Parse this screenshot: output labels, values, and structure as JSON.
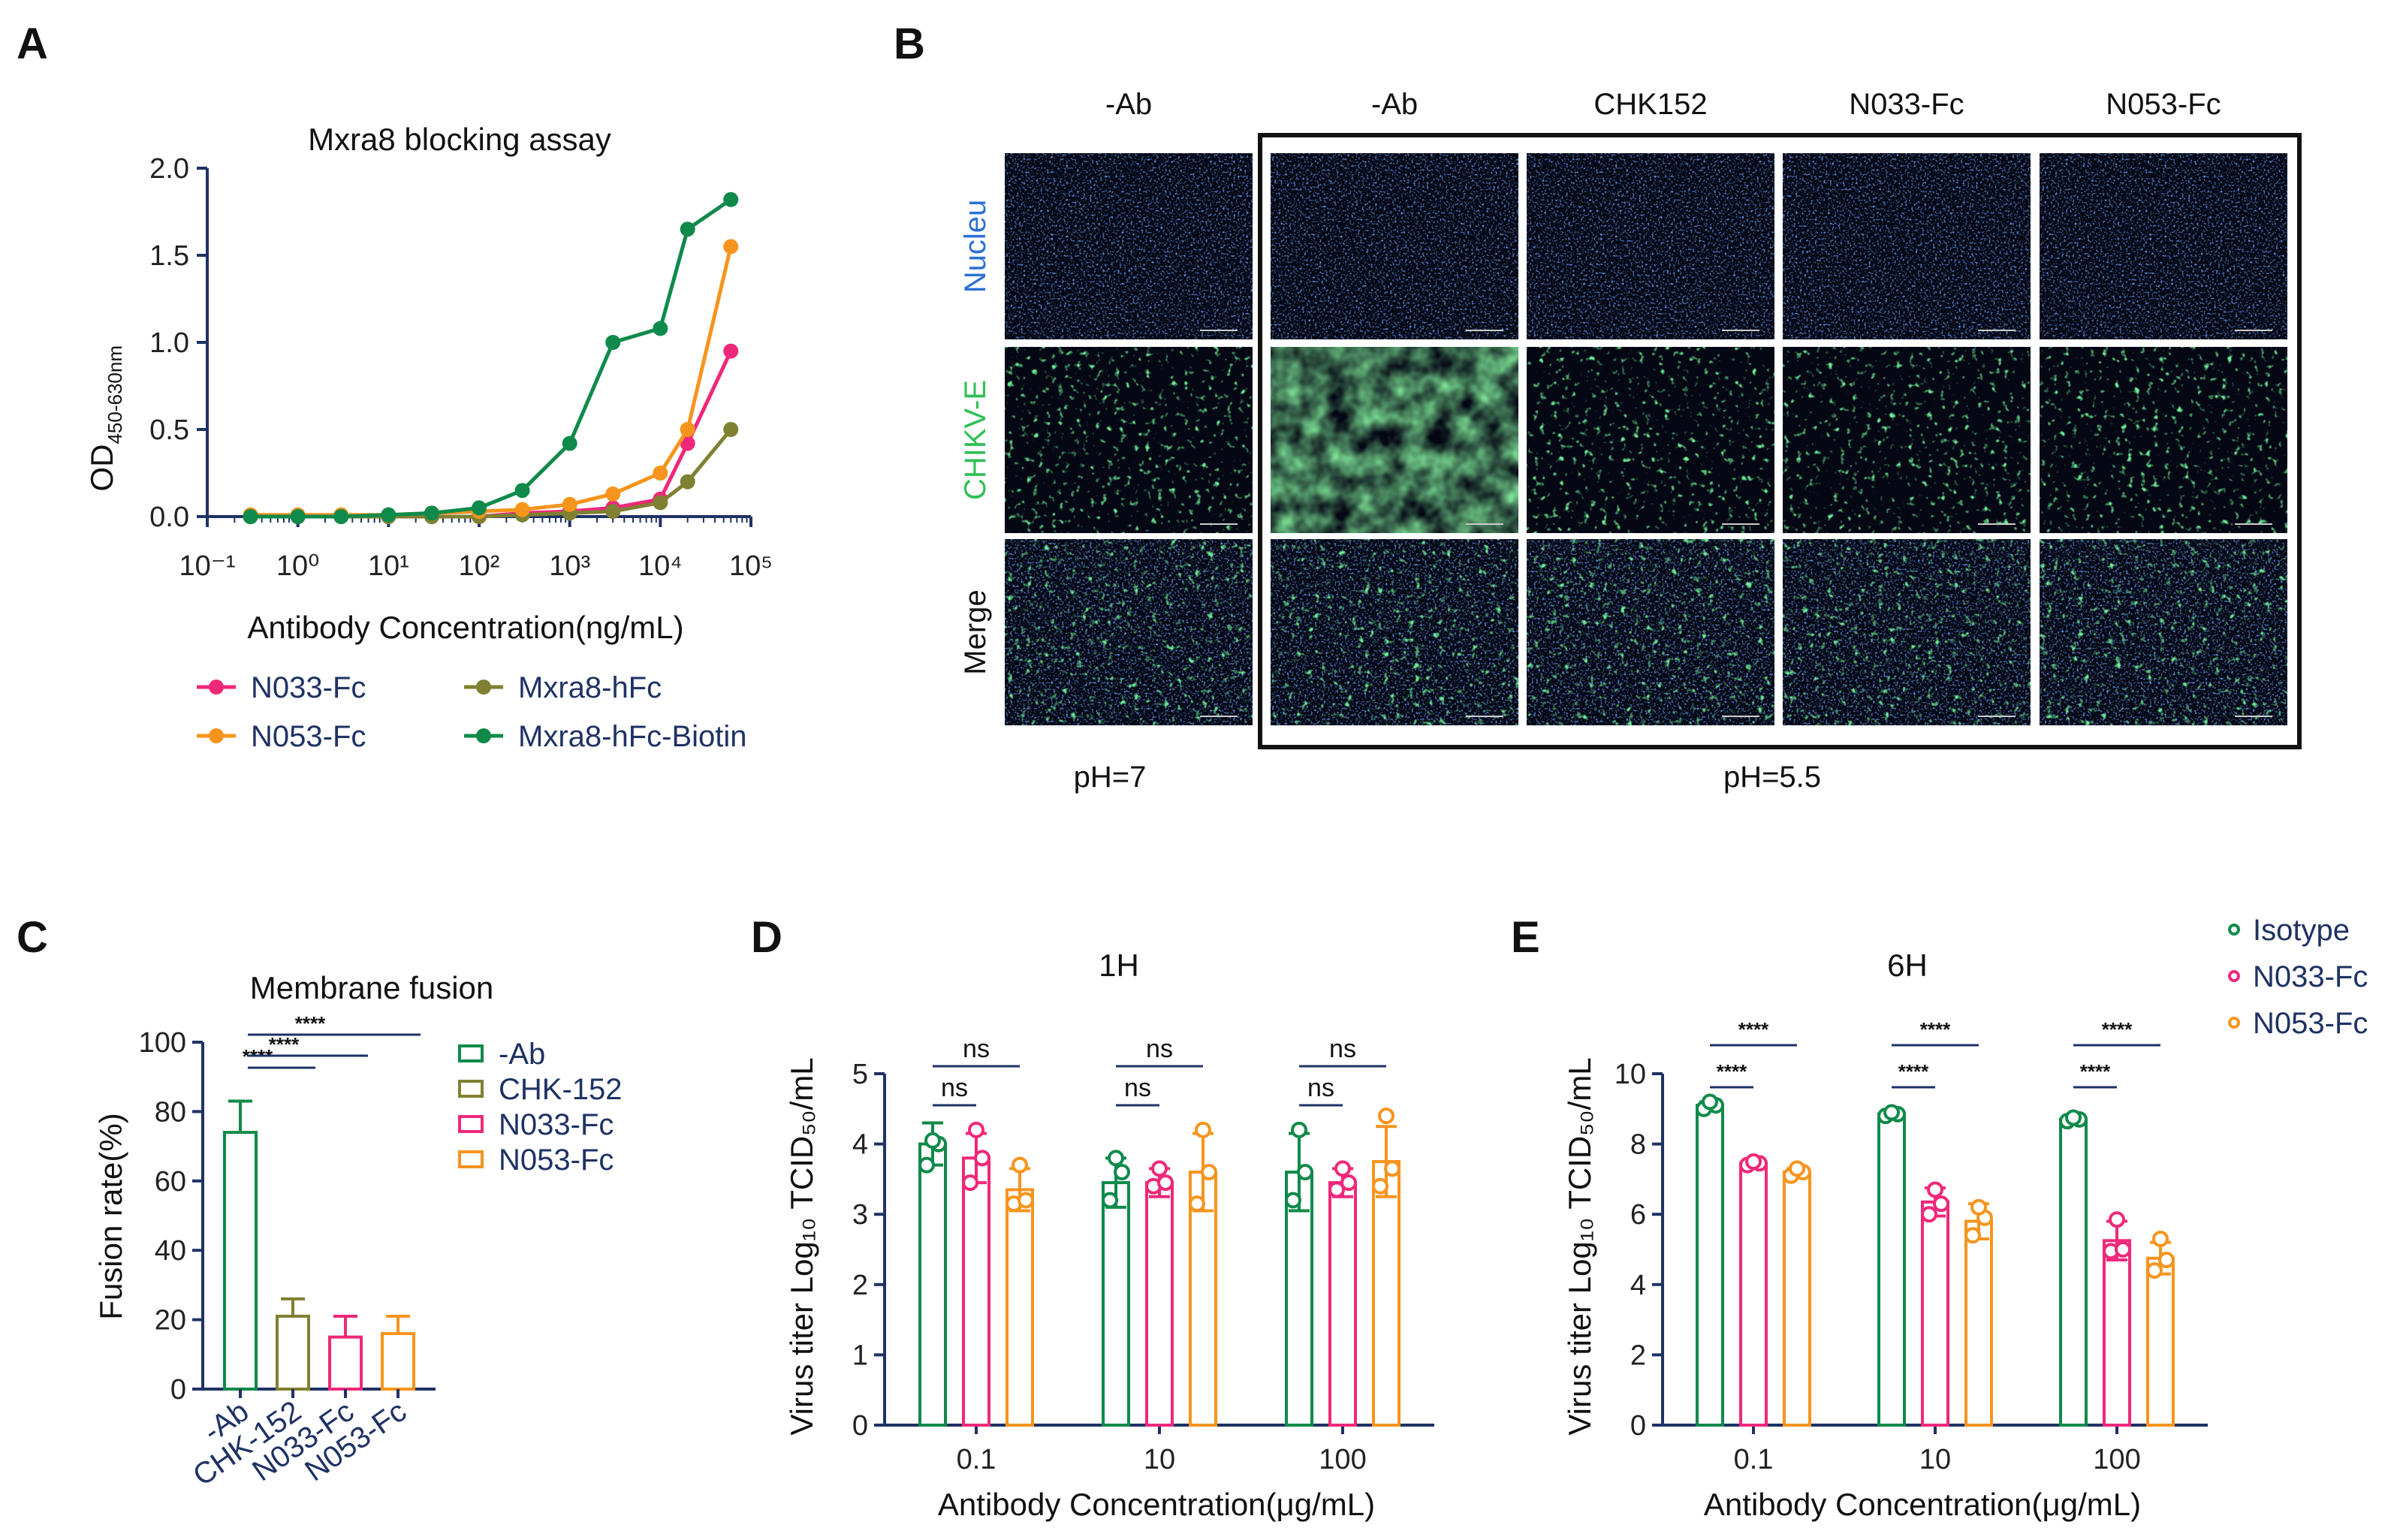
{
  "colors": {
    "navy": "#1f3264",
    "pink": "#f0287a",
    "orange": "#f7941d",
    "olive": "#808033",
    "green": "#0f8a4a",
    "nucleus_blue": "#2b6fd6",
    "chikv_green": "#2fbf55"
  },
  "panels": {
    "A": {
      "label": "A"
    },
    "B": {
      "label": "B",
      "columns": [
        "-Ab",
        "-Ab",
        "CHK152",
        "N033-Fc",
        "N053-Fc"
      ],
      "rows": [
        "Nucleu",
        "CHIKV-E",
        "Merge"
      ],
      "ph_left": "pH=7",
      "ph_right": "pH=5.5"
    },
    "C": {
      "label": "C"
    },
    "D": {
      "label": "D"
    },
    "E": {
      "label": "E"
    }
  },
  "chart_data": [
    {
      "panel": "A",
      "type": "line",
      "title": "Mxra8 blocking assay",
      "xlabel": "Antibody Concentration(ng/mL)",
      "ylabel_main": "OD",
      "ylabel_sub": "450-630nm",
      "xscale": "log10",
      "xlim": [
        0.1,
        100000
      ],
      "ylim": [
        0,
        2.0
      ],
      "x_ticks": [
        "10⁻¹",
        "10⁰",
        "10¹",
        "10²",
        "10³",
        "10⁴",
        "10⁵"
      ],
      "y_ticks": [
        "0.0",
        "0.5",
        "1.0",
        "1.5",
        "2.0"
      ],
      "legend_placement": "bottom",
      "series": [
        {
          "name": "N033-Fc",
          "color": "#f0287a",
          "x": [
            0.3,
            1,
            3,
            10,
            30,
            100,
            300,
            1000,
            3000,
            10000,
            20000,
            60000
          ],
          "y": [
            0.0,
            0.0,
            0.0,
            0.0,
            0.0,
            0.0,
            0.02,
            0.03,
            0.05,
            0.1,
            0.42,
            0.95
          ]
        },
        {
          "name": "Mxra8-hFc",
          "color": "#808033",
          "x": [
            0.3,
            1,
            3,
            10,
            30,
            100,
            300,
            1000,
            3000,
            10000,
            20000,
            60000
          ],
          "y": [
            0.0,
            0.0,
            0.0,
            0.0,
            0.0,
            0.0,
            0.01,
            0.02,
            0.03,
            0.08,
            0.2,
            0.5
          ]
        },
        {
          "name": "N053-Fc",
          "color": "#f7941d",
          "x": [
            0.3,
            1,
            3,
            10,
            30,
            100,
            300,
            1000,
            3000,
            10000,
            20000,
            60000
          ],
          "y": [
            0.01,
            0.01,
            0.01,
            0.01,
            0.02,
            0.03,
            0.04,
            0.07,
            0.13,
            0.25,
            0.5,
            1.55
          ]
        },
        {
          "name": "Mxra8-hFc-Biotin",
          "color": "#0f8a4a",
          "x": [
            0.3,
            1,
            3,
            10,
            30,
            100,
            300,
            1000,
            3000,
            10000,
            20000,
            60000
          ],
          "y": [
            0.0,
            0.0,
            0.0,
            0.01,
            0.02,
            0.05,
            0.15,
            0.42,
            1.0,
            1.08,
            1.65,
            1.82
          ]
        }
      ]
    },
    {
      "panel": "C",
      "type": "bar",
      "title": "Membrane fusion",
      "xlabel": "",
      "ylabel": "Fusion rate(%)",
      "ylim": [
        0,
        100
      ],
      "y_ticks": [
        "0",
        "20",
        "40",
        "60",
        "80",
        "100"
      ],
      "categories": [
        "-Ab",
        "CHK-152",
        "N033-Fc",
        "N053-Fc"
      ],
      "values": [
        74,
        21,
        15,
        16
      ],
      "errors": [
        9,
        5,
        6,
        5
      ],
      "colors": [
        "#0f8a4a",
        "#808033",
        "#f0287a",
        "#f7941d"
      ],
      "legend_placement": "right",
      "significance": [
        "****",
        "****",
        "****"
      ]
    },
    {
      "panel": "D",
      "type": "bar",
      "title": "1H",
      "xlabel": "Antibody Concentration(μg/mL)",
      "ylabel": "Virus titer  Log₁₀ TCID₅₀/mL",
      "ylim": [
        0,
        5
      ],
      "y_ticks": [
        "0",
        "1",
        "2",
        "3",
        "4",
        "5"
      ],
      "categories": [
        "0.1",
        "10",
        "100"
      ],
      "series": [
        {
          "color": "#0f8a4a",
          "values": [
            4.0,
            3.45,
            3.6
          ],
          "errors": [
            0.3,
            0.35,
            0.55
          ],
          "points": [
            [
              3.7,
              4.0,
              4.05
            ],
            [
              3.2,
              3.6,
              3.8
            ],
            [
              3.2,
              3.6,
              4.2
            ]
          ]
        },
        {
          "color": "#f0287a",
          "values": [
            3.8,
            3.45,
            3.45
          ],
          "errors": [
            0.35,
            0.2,
            0.2
          ],
          "points": [
            [
              3.45,
              3.8,
              4.2
            ],
            [
              3.4,
              3.45,
              3.65
            ],
            [
              3.35,
              3.45,
              3.65
            ]
          ]
        },
        {
          "color": "#f7941d",
          "values": [
            3.35,
            3.6,
            3.75
          ],
          "errors": [
            0.3,
            0.55,
            0.5
          ],
          "points": [
            [
              3.15,
              3.2,
              3.7
            ],
            [
              3.15,
              3.6,
              4.2
            ],
            [
              3.4,
              3.65,
              4.4
            ]
          ]
        }
      ],
      "significance": [
        "ns",
        "ns",
        "ns",
        "ns",
        "ns",
        "ns"
      ]
    },
    {
      "panel": "E",
      "type": "bar",
      "title": "6H",
      "xlabel": "Antibody Concentration(μg/mL)",
      "ylabel": "Virus titer  Log₁₀ TCID₅₀/mL",
      "ylim": [
        0,
        10
      ],
      "y_ticks": [
        "0",
        "2",
        "4",
        "6",
        "8",
        "10"
      ],
      "categories": [
        "0.1",
        "10",
        "100"
      ],
      "series": [
        {
          "name": "Isotype",
          "color": "#0f8a4a",
          "values": [
            9.1,
            8.85,
            8.7
          ],
          "errors": [
            0.1,
            0.1,
            0.1
          ],
          "points": [
            [
              9.0,
              9.1,
              9.2
            ],
            [
              8.8,
              8.85,
              8.9
            ],
            [
              8.65,
              8.7,
              8.75
            ]
          ]
        },
        {
          "name": "N033-Fc",
          "color": "#f0287a",
          "values": [
            7.45,
            6.35,
            5.25
          ],
          "errors": [
            0.1,
            0.4,
            0.55
          ],
          "points": [
            [
              7.4,
              7.45,
              7.5
            ],
            [
              6.0,
              6.3,
              6.7
            ],
            [
              4.95,
              5.0,
              5.85
            ]
          ]
        },
        {
          "name": "N053-Fc",
          "color": "#f7941d",
          "values": [
            7.2,
            5.8,
            4.75
          ],
          "errors": [
            0.1,
            0.5,
            0.45
          ],
          "points": [
            [
              7.1,
              7.2,
              7.3
            ],
            [
              5.4,
              5.9,
              6.2
            ],
            [
              4.4,
              4.7,
              5.3
            ]
          ]
        }
      ],
      "legend_placement": "top-right",
      "significance": [
        "****",
        "****",
        "****",
        "****",
        "****",
        "****"
      ]
    }
  ]
}
